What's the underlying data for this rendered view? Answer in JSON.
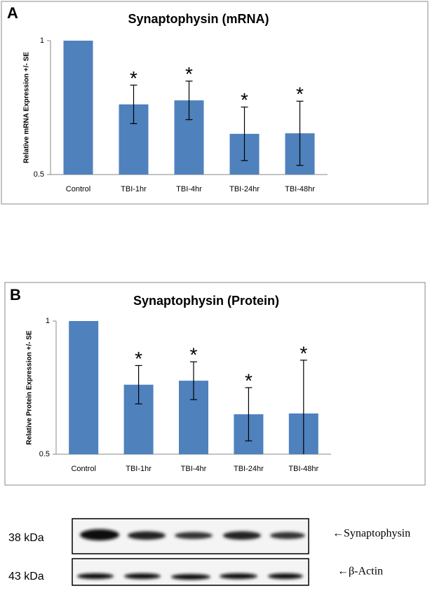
{
  "chart_data": [
    {
      "type": "bar",
      "panel": "A",
      "title": "Synaptophysin (mRNA)",
      "y_label": "Relative mRNA Expression +/- SE",
      "categories": [
        "Control",
        "TBI-1hr",
        "TBI-4hr",
        "TBI-24hr",
        "TBI-48hr"
      ],
      "values": [
        1,
        0.762,
        0.777,
        0.652,
        0.654
      ],
      "errors": [
        null,
        0.072,
        0.072,
        0.1,
        0.12
      ],
      "significance": [
        null,
        "*",
        "*",
        "*",
        "*"
      ],
      "color": "#4f81bd",
      "ylim": [
        0.5,
        1
      ],
      "yticks": [
        0.5,
        1
      ]
    },
    {
      "type": "bar",
      "panel": "B",
      "title": "Synaptophysin (Protein)",
      "y_label": "Relative Protein Expression +/- SE",
      "categories": [
        "Control",
        "TBI-1hr",
        "TBI-4hr",
        "TBI-24hr",
        "TBI-48hr"
      ],
      "values": [
        1,
        0.761,
        0.776,
        0.65,
        0.653
      ],
      "errors": [
        null,
        0.072,
        0.071,
        0.1,
        0.2
      ],
      "significance": [
        null,
        "*",
        "*",
        "*",
        "*"
      ],
      "color": "#4f81bd",
      "ylim": [
        0.5,
        1
      ],
      "yticks": [
        0.5,
        1
      ]
    }
  ],
  "blot": {
    "rows": [
      {
        "size": "38 kDa",
        "protein": "←Synaptophysin"
      },
      {
        "size": "43 kDa",
        "protein": "←β-Actin"
      }
    ]
  }
}
